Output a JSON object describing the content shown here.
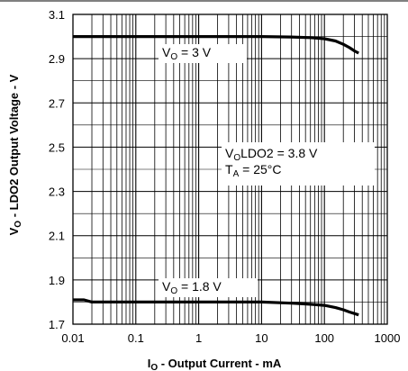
{
  "chart_data": {
    "type": "line",
    "title": "",
    "xlabel": {
      "main": "I",
      "sub": "O",
      "rest": " - Output Current - mA"
    },
    "ylabel": {
      "main": "V",
      "sub": "O",
      "rest": " - LDO2 Output Voltage - V"
    },
    "xscale": "log",
    "xlim": [
      0.01,
      1000
    ],
    "ylim": [
      1.7,
      3.1
    ],
    "x_ticks": [
      "0.01",
      "0.1",
      "1",
      "10",
      "100",
      "1000"
    ],
    "y_ticks": [
      "1.7",
      "1.9",
      "2.1",
      "2.3",
      "2.5",
      "2.7",
      "2.9",
      "3.1"
    ],
    "grid": true,
    "legend": "none",
    "series": [
      {
        "x": [
          0.01,
          0.1,
          1,
          10,
          30,
          60,
          100,
          150,
          200,
          250,
          300,
          350
        ],
        "values": [
          3.0,
          3.0,
          3.0,
          3.0,
          2.998,
          2.995,
          2.99,
          2.98,
          2.965,
          2.95,
          2.935,
          2.925
        ]
      },
      {
        "x": [
          0.01,
          0.015,
          0.02,
          0.1,
          1,
          10,
          30,
          60,
          100,
          150,
          200,
          250,
          300,
          350
        ],
        "values": [
          1.81,
          1.81,
          1.8,
          1.8,
          1.8,
          1.8,
          1.795,
          1.79,
          1.785,
          1.775,
          1.765,
          1.755,
          1.748,
          1.742
        ]
      }
    ],
    "annotations": [
      {
        "main": "V",
        "sub": "O",
        "rest": " = 3 V"
      },
      {
        "main": "V",
        "sub": "O",
        "rest": " = 1.8 V"
      },
      {
        "main": "V",
        "sub": "O",
        "rest": "LDO2 = 3.8 V"
      },
      {
        "main": "T",
        "sub": "A",
        "rest": " = 25°C"
      }
    ]
  }
}
